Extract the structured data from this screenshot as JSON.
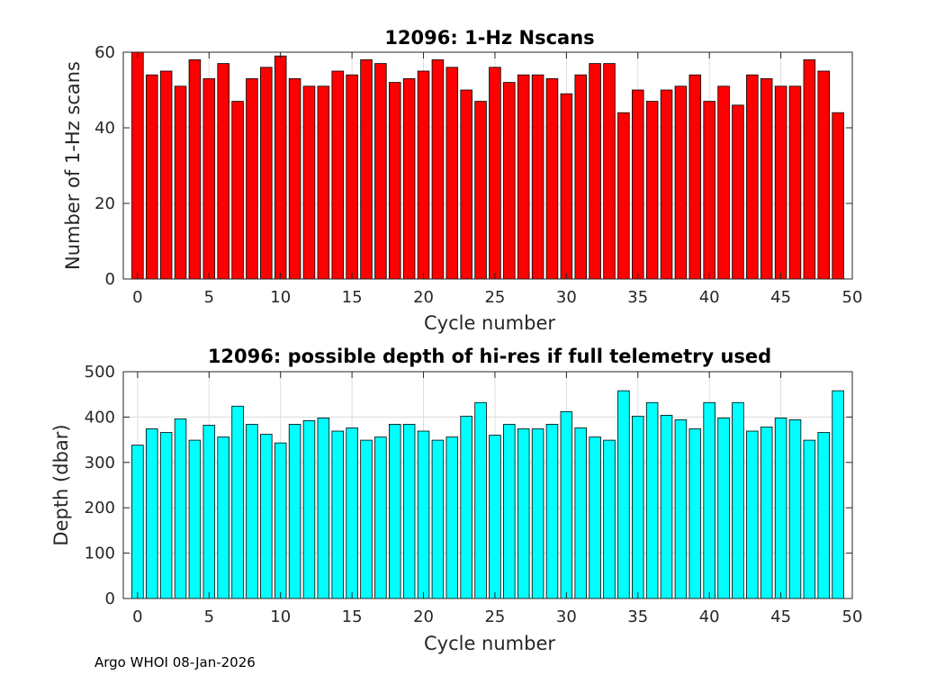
{
  "chart_data": [
    {
      "type": "bar",
      "title": "12096: 1-Hz Nscans",
      "xlabel": "Cycle number",
      "ylabel": "Number of 1-Hz scans",
      "color": "#ff0000",
      "xlim": [
        -1,
        50
      ],
      "ylim": [
        0,
        60
      ],
      "xticks": [
        0,
        5,
        10,
        15,
        20,
        25,
        30,
        35,
        40,
        45,
        50
      ],
      "yticks": [
        0,
        20,
        40,
        60
      ],
      "grid": true,
      "x": [
        0,
        1,
        2,
        3,
        4,
        5,
        6,
        7,
        8,
        9,
        10,
        11,
        12,
        13,
        14,
        15,
        16,
        17,
        18,
        19,
        20,
        21,
        22,
        23,
        24,
        25,
        26,
        27,
        28,
        29,
        30,
        31,
        32,
        33,
        34,
        35,
        36,
        37,
        38,
        39,
        40,
        41,
        42,
        43,
        44,
        45,
        46,
        47,
        48,
        49
      ],
      "values": [
        60,
        54,
        55,
        51,
        58,
        53,
        57,
        47,
        53,
        56,
        59,
        53,
        51,
        51,
        55,
        54,
        58,
        57,
        52,
        53,
        55,
        58,
        56,
        50,
        47,
        56,
        52,
        54,
        54,
        53,
        49,
        54,
        57,
        57,
        44,
        50,
        47,
        50,
        51,
        54,
        47,
        51,
        46,
        54,
        53,
        51,
        51,
        58,
        55,
        44
      ]
    },
    {
      "type": "bar",
      "title": "12096: possible depth of hi-res if full telemetry used",
      "xlabel": "Cycle number",
      "ylabel": "Depth (dbar)",
      "color": "#00ffff",
      "xlim": [
        -1,
        50
      ],
      "ylim": [
        0,
        500
      ],
      "xticks": [
        0,
        5,
        10,
        15,
        20,
        25,
        30,
        35,
        40,
        45,
        50
      ],
      "yticks": [
        0,
        100,
        200,
        300,
        400,
        500
      ],
      "grid": true,
      "x": [
        0,
        1,
        2,
        3,
        4,
        5,
        6,
        7,
        8,
        9,
        10,
        11,
        12,
        13,
        14,
        15,
        16,
        17,
        18,
        19,
        20,
        21,
        22,
        23,
        24,
        25,
        26,
        27,
        28,
        29,
        30,
        31,
        32,
        33,
        34,
        35,
        36,
        37,
        38,
        39,
        40,
        41,
        42,
        43,
        44,
        45,
        46,
        47,
        48,
        49
      ],
      "values": [
        338,
        374,
        366,
        396,
        349,
        382,
        356,
        424,
        384,
        362,
        343,
        384,
        392,
        398,
        369,
        376,
        349,
        356,
        384,
        384,
        369,
        349,
        356,
        402,
        432,
        360,
        384,
        374,
        374,
        384,
        412,
        376,
        356,
        349,
        458,
        402,
        432,
        404,
        394,
        374,
        432,
        398,
        432,
        369,
        378,
        398,
        394,
        349,
        366,
        458
      ]
    }
  ],
  "footer": {
    "text": "Argo WHOI 08-Jan-2026"
  }
}
